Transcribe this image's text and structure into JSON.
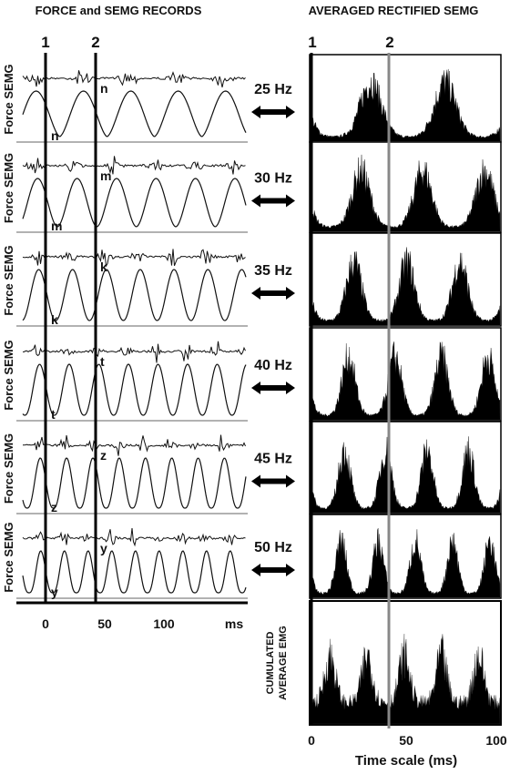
{
  "left_panel": {
    "title": "FORCE and SEMG RECORDS",
    "markers": [
      "1",
      "2"
    ],
    "rows": [
      {
        "label": "Force SEMG",
        "letter": "n"
      },
      {
        "label": "Force SEMG",
        "letter": "m"
      },
      {
        "label": "Force SEMG",
        "letter": "k"
      },
      {
        "label": "Force SEMG",
        "letter": "t"
      },
      {
        "label": "Force SEMG",
        "letter": "z"
      },
      {
        "label": "Force SEMG",
        "letter": "y"
      }
    ],
    "ticks": [
      "0",
      "50",
      "100"
    ],
    "unit": "ms"
  },
  "stimulation": [
    "25 Hz",
    "30 Hz",
    "35 Hz",
    "40 Hz",
    "45 Hz",
    "50 Hz"
  ],
  "right_panel": {
    "title": "AVERAGED RECTIFIED SEMG",
    "markers": [
      "1",
      "2"
    ],
    "cumulated_label": [
      "CUMULATED",
      "AVERAGE EMG"
    ],
    "ticks": [
      "0",
      "50",
      "100"
    ],
    "axis_title": "Time scale (ms)"
  }
}
